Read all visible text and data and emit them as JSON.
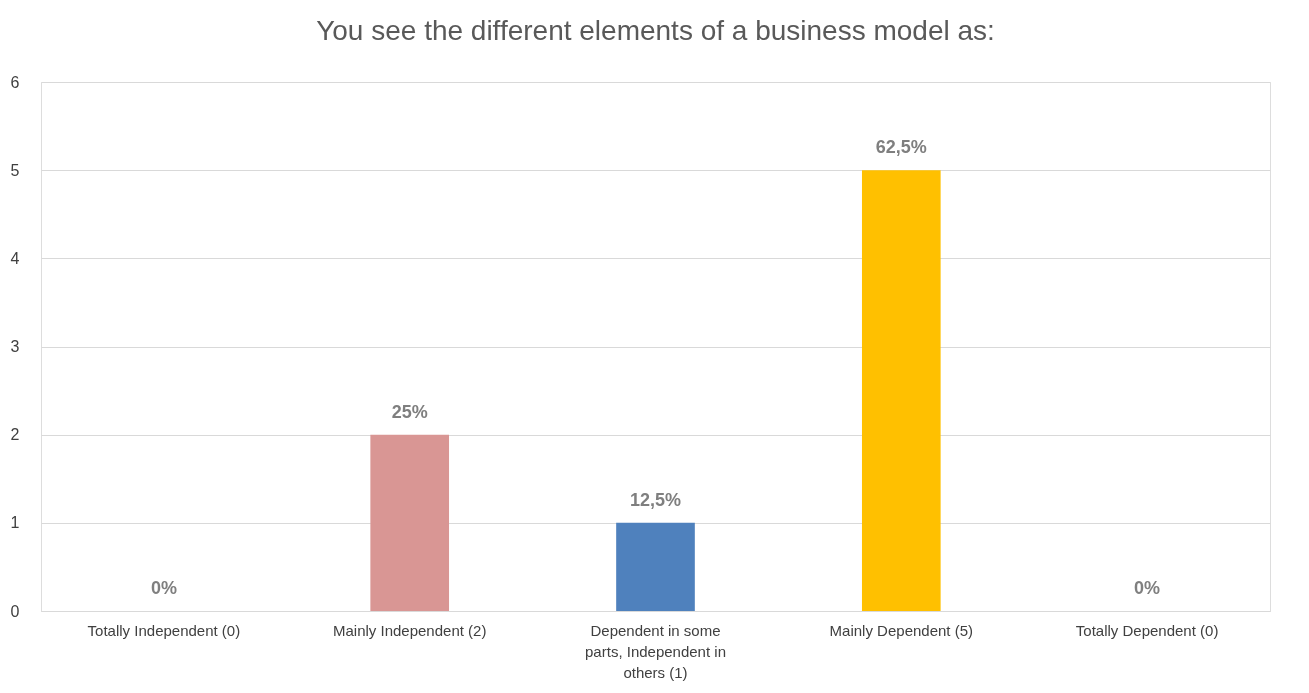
{
  "chart_data": {
    "type": "bar",
    "title": "You see the different elements of a business model as:",
    "categories": [
      "Totally Independent (0)",
      "Mainly Independent (2)",
      "Dependent in some parts, Independent in others (1)",
      "Mainly Dependent (5)",
      "Totally Dependent (0)"
    ],
    "values": [
      0,
      2,
      1,
      5,
      0
    ],
    "colors": [
      "#a5a5a5",
      "#d99694",
      "#4f81bd",
      "#ffc000",
      "#a5a5a5"
    ],
    "annotations": [
      {
        "text": "0%",
        "x": "Totally Independent (0)",
        "y": 0
      },
      {
        "text": "25%",
        "x": "Mainly Independent (2)",
        "y": 2
      },
      {
        "text": "12,5%",
        "x": "Dependent in some parts, Independent in others (1)",
        "y": 1
      },
      {
        "text": "62,5%",
        "x": "Mainly Dependent (5)",
        "y": 5
      },
      {
        "text": "0%",
        "x": "Totally Dependent (0)",
        "y": 0
      }
    ],
    "ylim": [
      0,
      6
    ],
    "yticks": [
      0,
      1,
      2,
      3,
      4,
      5,
      6
    ],
    "grid": "y"
  }
}
